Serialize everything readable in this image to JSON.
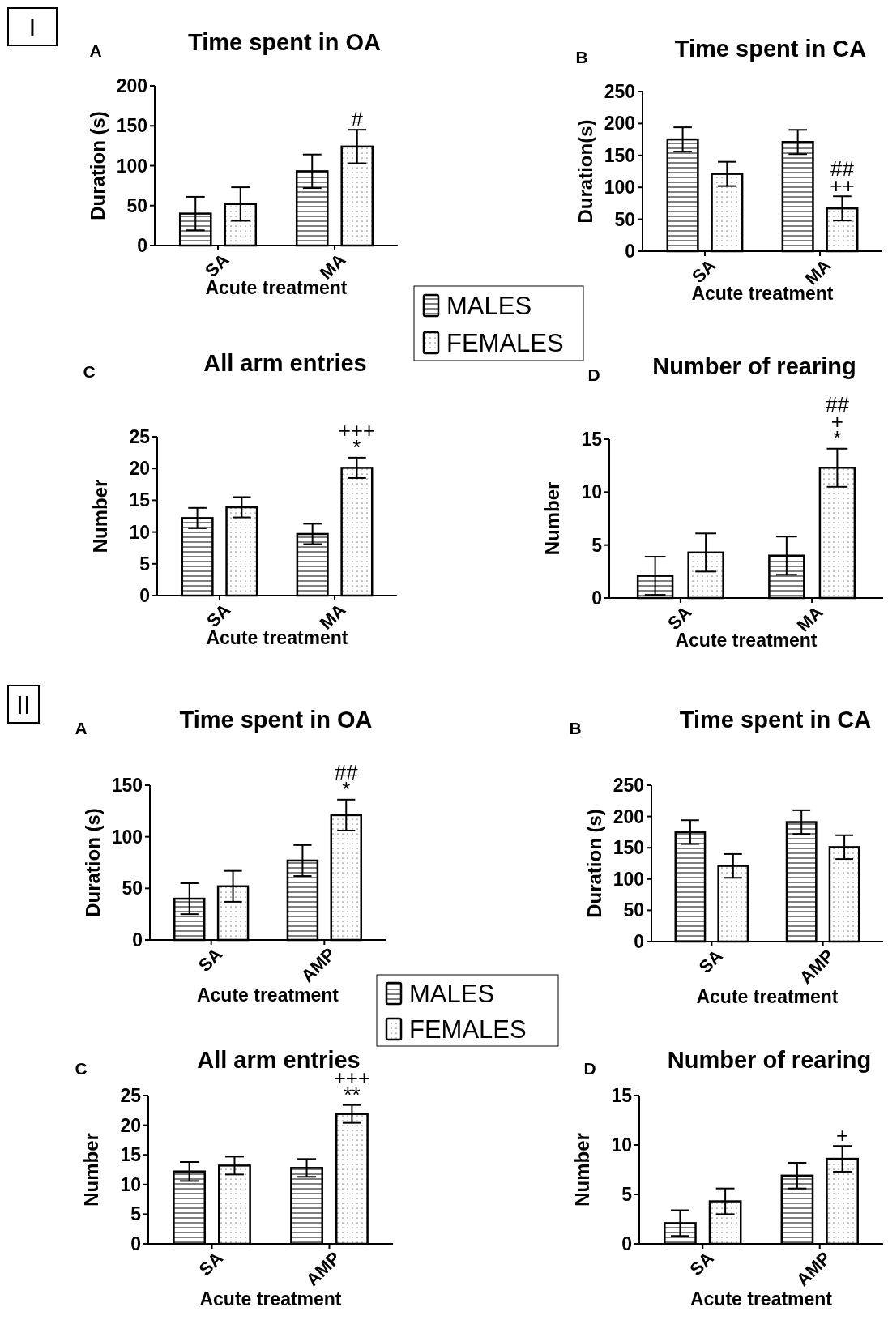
{
  "chart_data": [
    {
      "type": "bar",
      "title": "Time spent in OA",
      "xlabel": "Acute treatment",
      "ylabel": "Duration (s)",
      "categories": [
        "SA",
        "MA"
      ],
      "series": [
        {
          "name": "MALES",
          "color": "#000000",
          "values": [
            40,
            93
          ],
          "errors": [
            21,
            21
          ]
        },
        {
          "name": "FEMALES",
          "color": "#000000",
          "values": [
            52,
            124
          ],
          "errors": [
            21,
            21
          ]
        }
      ],
      "ylim": [
        0,
        200
      ],
      "yticks": [
        0,
        50,
        100,
        150,
        200
      ],
      "legend": "bottom right",
      "annotations": [
        "I",
        "A",
        "#"
      ]
    },
    {
      "type": "bar",
      "title": "Time spent in CA",
      "xlabel": "Acute treatment",
      "ylabel": "Duration(s)",
      "categories": [
        "SA",
        "MA"
      ],
      "series": [
        {
          "color": "#000000",
          "values": [
            175,
            171
          ],
          "errors": [
            19,
            19
          ]
        },
        {
          "color": "#000000",
          "values": [
            121,
            67
          ],
          "errors": [
            19,
            19
          ]
        }
      ],
      "ylim": [
        0,
        250
      ],
      "yticks": [
        0,
        50,
        100,
        150,
        200,
        250
      ],
      "annotations": [
        "B",
        "++",
        "##"
      ]
    },
    {
      "type": "bar",
      "title": "All arm entries",
      "xlabel": "Acute treatment",
      "ylabel": "Number",
      "categories": [
        "SA",
        "MA"
      ],
      "series": [
        {
          "color": "#000000",
          "values": [
            12.2,
            9.7
          ],
          "errors": [
            1.6,
            1.6
          ]
        },
        {
          "color": "#000000",
          "values": [
            13.9,
            20.1
          ],
          "errors": [
            1.6,
            1.6
          ]
        }
      ],
      "ylim": [
        0,
        25
      ],
      "yticks": [
        0,
        5,
        10,
        15,
        20,
        25
      ],
      "annotations": [
        "C",
        "*",
        "+++"
      ]
    },
    {
      "type": "bar",
      "title": "Number of rearing",
      "xlabel": "Acute treatment",
      "ylabel": "Number",
      "categories": [
        "SA",
        "MA"
      ],
      "series": [
        {
          "color": "#000000",
          "values": [
            2.1,
            4.0
          ],
          "errors": [
            1.8,
            1.8
          ]
        },
        {
          "color": "#000000",
          "values": [
            4.3,
            12.3
          ],
          "errors": [
            1.8,
            1.8
          ]
        }
      ],
      "ylim": [
        0,
        15
      ],
      "yticks": [
        0,
        5,
        10,
        15
      ],
      "annotations": [
        "D",
        "*",
        "+",
        "##"
      ]
    },
    {
      "type": "bar",
      "title": "Time spent in OA",
      "xlabel": "Acute treatment",
      "ylabel": "Duration (s)",
      "categories": [
        "SA",
        "AMP"
      ],
      "series": [
        {
          "name": "MALES",
          "color": "#000000",
          "values": [
            40,
            77
          ],
          "errors": [
            15,
            15
          ]
        },
        {
          "name": "FEMALES",
          "color": "#000000",
          "values": [
            52,
            121
          ],
          "errors": [
            15,
            15
          ]
        }
      ],
      "ylim": [
        0,
        150
      ],
      "yticks": [
        0,
        50,
        100,
        150
      ],
      "legend": "bottom right",
      "annotations": [
        "II",
        "A",
        "*",
        "##"
      ]
    },
    {
      "type": "bar",
      "title": "Time spent in CA",
      "xlabel": "Acute treatment",
      "ylabel": "Duration (s)",
      "categories": [
        "SA",
        "AMP"
      ],
      "series": [
        {
          "color": "#000000",
          "values": [
            175,
            191
          ],
          "errors": [
            19,
            19
          ]
        },
        {
          "color": "#000000",
          "values": [
            121,
            151
          ],
          "errors": [
            19,
            19
          ]
        }
      ],
      "ylim": [
        0,
        250
      ],
      "yticks": [
        0,
        50,
        100,
        150,
        200,
        250
      ],
      "annotations": [
        "B"
      ]
    },
    {
      "type": "bar",
      "title": "All arm entries",
      "xlabel": "Acute treatment",
      "ylabel": "Number",
      "categories": [
        "SA",
        "AMP"
      ],
      "series": [
        {
          "color": "#000000",
          "values": [
            12.2,
            12.8
          ],
          "errors": [
            1.6,
            1.5
          ]
        },
        {
          "color": "#000000",
          "values": [
            13.2,
            21.9
          ],
          "errors": [
            1.5,
            1.5
          ]
        }
      ],
      "ylim": [
        0,
        25
      ],
      "yticks": [
        0,
        5,
        10,
        15,
        20,
        25
      ],
      "annotations": [
        "C",
        "**",
        "+++"
      ]
    },
    {
      "type": "bar",
      "title": "Number of rearing",
      "xlabel": "Acute treatment",
      "ylabel": "Number",
      "categories": [
        "SA",
        "AMP"
      ],
      "series": [
        {
          "color": "#000000",
          "values": [
            2.1,
            6.9
          ],
          "errors": [
            1.3,
            1.3
          ]
        },
        {
          "color": "#000000",
          "values": [
            4.3,
            8.6
          ],
          "errors": [
            1.3,
            1.3
          ]
        }
      ],
      "ylim": [
        0,
        15
      ],
      "yticks": [
        0,
        5,
        10,
        15
      ],
      "annotations": [
        "D",
        "+"
      ]
    }
  ]
}
